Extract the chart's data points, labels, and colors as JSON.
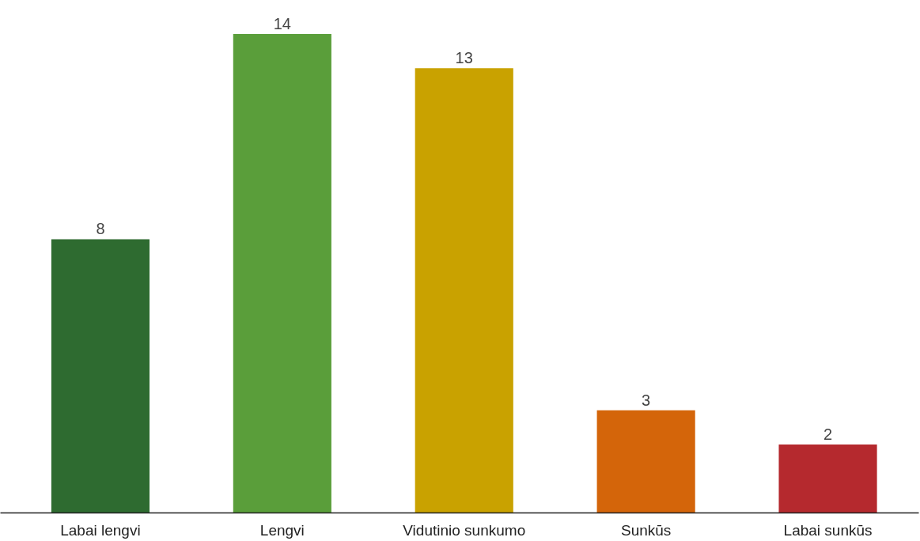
{
  "chart_data": {
    "type": "bar",
    "categories": [
      "Labai lengvi",
      "Lengvi",
      "Vidutinio sunkumo",
      "Sunkūs",
      "Labai sunkūs"
    ],
    "values": [
      8,
      14,
      13,
      3,
      2
    ],
    "colors": [
      "#2e6b30",
      "#5a9e3a",
      "#c9a200",
      "#d4650a",
      "#b5292e"
    ],
    "data_labels": true
  }
}
